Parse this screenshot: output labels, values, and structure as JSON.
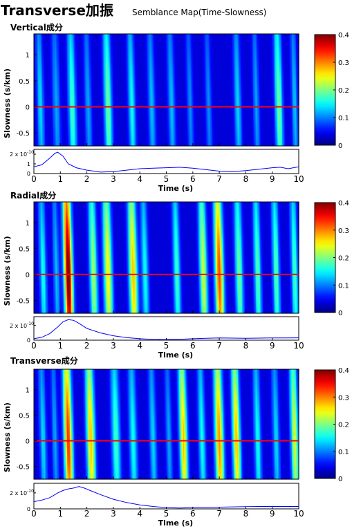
{
  "header": {
    "title": "Transverse加振",
    "subtitle": "Semblance Map(Time-Slowness)"
  },
  "axes": {
    "slowness_label": "Slowness (s/km)",
    "time_label": "Time (s)"
  },
  "chart_data": [
    {
      "type": "heatmap",
      "title": "Vertical成分",
      "xlabel": "Time (s)",
      "ylabel": "Slowness (s/km)",
      "xlim": [
        0,
        10
      ],
      "ylim": [
        -0.75,
        1.4
      ],
      "xticks": [
        "0",
        "1",
        "2",
        "3",
        "4",
        "5",
        "6",
        "7",
        "8",
        "9",
        "10"
      ],
      "yticks": [
        "-0.5",
        "0",
        "0.5",
        "1"
      ],
      "colorbar": {
        "min": 0,
        "max": 0.4,
        "ticks": [
          "0",
          "0.1",
          "0.2",
          "0.3",
          "0.4"
        ],
        "colormap": "jet"
      },
      "reference_line": {
        "slowness": 0,
        "color": "#ff0000"
      },
      "ridges": [
        {
          "t": 0.25,
          "w": 0.09,
          "amp": 0.1,
          "slope": -0.05
        },
        {
          "t": 0.85,
          "w": 0.1,
          "amp": 0.08,
          "slope": -0.05
        },
        {
          "t": 1.45,
          "w": 0.1,
          "amp": 0.14,
          "slope": -0.05
        },
        {
          "t": 2.05,
          "w": 0.09,
          "amp": 0.08,
          "slope": -0.05
        },
        {
          "t": 2.8,
          "w": 0.1,
          "amp": 0.16,
          "slope": -0.05
        },
        {
          "t": 3.7,
          "w": 0.09,
          "amp": 0.12,
          "slope": -0.05
        },
        {
          "t": 4.45,
          "w": 0.09,
          "amp": 0.09,
          "slope": -0.05
        },
        {
          "t": 5.2,
          "w": 0.09,
          "amp": 0.09,
          "slope": -0.05
        },
        {
          "t": 5.9,
          "w": 0.08,
          "amp": 0.07,
          "slope": -0.05
        },
        {
          "t": 6.6,
          "w": 0.08,
          "amp": 0.07,
          "slope": -0.05
        },
        {
          "t": 7.7,
          "w": 0.09,
          "amp": 0.1,
          "slope": -0.05
        },
        {
          "t": 8.4,
          "w": 0.08,
          "amp": 0.08,
          "slope": -0.05
        },
        {
          "t": 9.25,
          "w": 0.1,
          "amp": 0.16,
          "slope": -0.05
        },
        {
          "t": 9.85,
          "w": 0.08,
          "amp": 0.09,
          "slope": -0.05
        }
      ],
      "waveform": {
        "scale_label": "2 x 10",
        "scale_exp": "-10",
        "yticks": [
          "0",
          "1",
          "2"
        ],
        "ylim": [
          0,
          2.5
        ],
        "x": [
          0,
          0.3,
          0.6,
          0.8,
          0.9,
          1.1,
          1.3,
          1.6,
          2.0,
          2.5,
          3.0,
          3.5,
          4.0,
          4.5,
          5.0,
          5.5,
          6.0,
          6.5,
          7.0,
          7.5,
          8.0,
          8.5,
          9.0,
          9.3,
          9.6,
          10
        ],
        "y": [
          0.7,
          0.9,
          1.6,
          2.1,
          2.2,
          1.8,
          1.0,
          0.6,
          0.35,
          0.15,
          0.2,
          0.35,
          0.5,
          0.55,
          0.6,
          0.65,
          0.55,
          0.4,
          0.25,
          0.2,
          0.3,
          0.45,
          0.6,
          0.65,
          0.5,
          0.7
        ]
      }
    },
    {
      "type": "heatmap",
      "title": "Radial成分",
      "xlabel": "Time (s)",
      "ylabel": "Slowness (s/km)",
      "xlim": [
        0,
        10
      ],
      "ylim": [
        -0.75,
        1.4
      ],
      "xticks": [
        "0",
        "1",
        "2",
        "3",
        "4",
        "5",
        "6",
        "7",
        "8",
        "9",
        "10"
      ],
      "yticks": [
        "-0.5",
        "0",
        "0.5",
        "1"
      ],
      "colorbar": {
        "min": 0,
        "max": 0.4,
        "ticks": [
          "0",
          "0.1",
          "0.2",
          "0.3",
          "0.4"
        ],
        "colormap": "jet"
      },
      "reference_line": {
        "slowness": 0,
        "color": "#ff0000"
      },
      "ridges": [
        {
          "t": 0.35,
          "w": 0.09,
          "amp": 0.12,
          "slope": -0.05
        },
        {
          "t": 0.85,
          "w": 0.08,
          "amp": 0.09,
          "slope": -0.05
        },
        {
          "t": 1.3,
          "w": 0.11,
          "amp": 0.38,
          "slope": -0.05
        },
        {
          "t": 2.25,
          "w": 0.1,
          "amp": 0.18,
          "slope": -0.05
        },
        {
          "t": 2.8,
          "w": 0.11,
          "amp": 0.22,
          "slope": -0.05
        },
        {
          "t": 3.75,
          "w": 0.11,
          "amp": 0.24,
          "slope": -0.05
        },
        {
          "t": 4.2,
          "w": 0.09,
          "amp": 0.12,
          "slope": -0.05
        },
        {
          "t": 5.4,
          "w": 0.09,
          "amp": 0.14,
          "slope": -0.05
        },
        {
          "t": 6.4,
          "w": 0.1,
          "amp": 0.2,
          "slope": -0.05
        },
        {
          "t": 7.0,
          "w": 0.11,
          "amp": 0.29,
          "slope": -0.05
        },
        {
          "t": 7.75,
          "w": 0.1,
          "amp": 0.16,
          "slope": -0.05
        },
        {
          "t": 8.45,
          "w": 0.09,
          "amp": 0.15,
          "slope": -0.05
        },
        {
          "t": 9.15,
          "w": 0.09,
          "amp": 0.15,
          "slope": -0.05
        },
        {
          "t": 9.85,
          "w": 0.09,
          "amp": 0.14,
          "slope": -0.05
        }
      ],
      "waveform": {
        "scale_label": "2 x 10",
        "scale_exp": "-10",
        "yticks": [
          "0",
          "2"
        ],
        "ylim": [
          0,
          3.2
        ],
        "x": [
          0,
          0.3,
          0.6,
          0.9,
          1.1,
          1.3,
          1.5,
          1.7,
          2.0,
          2.5,
          3.0,
          3.5,
          4.0,
          4.5,
          5.0,
          5.5,
          6.0,
          6.5,
          7.0,
          7.5,
          8.0,
          8.5,
          9.0,
          9.5,
          10
        ],
        "y": [
          0.2,
          0.4,
          0.9,
          1.8,
          2.5,
          2.8,
          2.7,
          2.3,
          1.6,
          1.0,
          0.6,
          0.35,
          0.2,
          0.1,
          0.08,
          0.12,
          0.2,
          0.25,
          0.3,
          0.28,
          0.25,
          0.28,
          0.3,
          0.3,
          0.32
        ]
      }
    },
    {
      "type": "heatmap",
      "title": "Transverse成分",
      "xlabel": "Time (s)",
      "ylabel": "Slowness (s/km)",
      "xlim": [
        0,
        10
      ],
      "ylim": [
        -0.75,
        1.4
      ],
      "xticks": [
        "0",
        "1",
        "2",
        "3",
        "4",
        "5",
        "6",
        "7",
        "8",
        "9",
        "10"
      ],
      "yticks": [
        "-0.5",
        "0",
        "0.5",
        "1"
      ],
      "colorbar": {
        "min": 0,
        "max": 0.4,
        "ticks": [
          "0",
          "0.1",
          "0.2",
          "0.3",
          "0.4"
        ],
        "colormap": "jet"
      },
      "reference_line": {
        "slowness": 0,
        "color": "#ff0000"
      },
      "ridges": [
        {
          "t": 0.35,
          "w": 0.09,
          "amp": 0.1,
          "slope": -0.05
        },
        {
          "t": 0.8,
          "w": 0.08,
          "amp": 0.08,
          "slope": -0.05
        },
        {
          "t": 1.3,
          "w": 0.11,
          "amp": 0.3,
          "slope": -0.05
        },
        {
          "t": 2.15,
          "w": 0.11,
          "amp": 0.24,
          "slope": -0.05
        },
        {
          "t": 3.1,
          "w": 0.11,
          "amp": 0.14,
          "slope": -0.05
        },
        {
          "t": 3.75,
          "w": 0.1,
          "amp": 0.12,
          "slope": -0.05
        },
        {
          "t": 4.5,
          "w": 0.09,
          "amp": 0.1,
          "slope": -0.05
        },
        {
          "t": 5.1,
          "w": 0.08,
          "amp": 0.08,
          "slope": -0.05
        },
        {
          "t": 5.65,
          "w": 0.1,
          "amp": 0.24,
          "slope": -0.05
        },
        {
          "t": 6.35,
          "w": 0.09,
          "amp": 0.12,
          "slope": -0.05
        },
        {
          "t": 7.0,
          "w": 0.11,
          "amp": 0.26,
          "slope": -0.05
        },
        {
          "t": 7.65,
          "w": 0.1,
          "amp": 0.24,
          "slope": -0.05
        },
        {
          "t": 8.45,
          "w": 0.09,
          "amp": 0.12,
          "slope": -0.05
        },
        {
          "t": 9.15,
          "w": 0.09,
          "amp": 0.1,
          "slope": -0.05
        },
        {
          "t": 9.85,
          "w": 0.1,
          "amp": 0.2,
          "slope": -0.05
        }
      ],
      "waveform": {
        "scale_label": "2 x 10",
        "scale_exp": "-10",
        "yticks": [
          "0",
          "2"
        ],
        "ylim": [
          0,
          3.2
        ],
        "x": [
          0,
          0.3,
          0.6,
          0.9,
          1.1,
          1.3,
          1.5,
          1.7,
          1.9,
          2.2,
          2.5,
          3.0,
          3.5,
          4.0,
          4.5,
          5.0,
          5.5,
          6.0,
          6.5,
          7.0,
          7.5,
          8.0,
          8.5,
          9.0,
          9.5,
          10
        ],
        "y": [
          0.9,
          1.1,
          1.4,
          2.0,
          2.3,
          2.5,
          2.6,
          2.8,
          2.6,
          2.2,
          1.8,
          1.2,
          0.8,
          0.5,
          0.3,
          0.15,
          0.1,
          0.15,
          0.2,
          0.22,
          0.25,
          0.28,
          0.3,
          0.3,
          0.3,
          0.3
        ]
      }
    }
  ]
}
